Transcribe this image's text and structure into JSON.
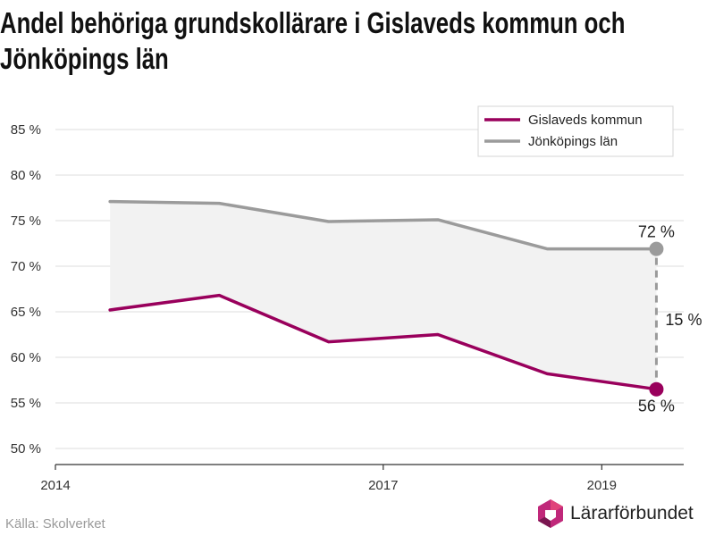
{
  "title_lines": [
    "Andel behöriga grundskollärare i Gislaveds kommun och",
    "Jönköpings län"
  ],
  "source": "Källa: Skolverket",
  "brand": "Lärarförbundet",
  "colors": {
    "gislaved": "#99005c",
    "jonkoping": "#9b9b9b",
    "band": "#f2f2f2",
    "grid": "#dddddd"
  },
  "chart_data": {
    "type": "line",
    "title": "Andel behöriga grundskollärare i Gislaveds kommun och Jönköpings län",
    "x": [
      2014.5,
      2015.5,
      2016.5,
      2017.5,
      2018.5,
      2019.5
    ],
    "series": [
      {
        "name": "Gislaveds kommun",
        "values": [
          65.2,
          66.8,
          61.7,
          62.5,
          58.2,
          56.5
        ]
      },
      {
        "name": "Jönköpings län",
        "values": [
          77.1,
          76.9,
          74.9,
          75.1,
          71.9,
          71.9
        ]
      }
    ],
    "ylim": [
      50,
      85
    ],
    "yticks": [
      50,
      55,
      60,
      65,
      70,
      75,
      80,
      85
    ],
    "ytick_labels": [
      "50 %",
      "55 %",
      "60 %",
      "65 %",
      "70 %",
      "75 %",
      "80 %",
      "85 %"
    ],
    "xticks": [
      2014,
      2017,
      2019
    ],
    "xtick_labels": [
      "2014",
      "2017",
      "2019"
    ],
    "xlim": [
      2014,
      2019.75
    ],
    "grid": true,
    "legend_position": "top-right",
    "annotations": {
      "jonkoping_end_label": "72 %",
      "gislaved_end_label": "56 %",
      "gap_label": "15 %"
    }
  }
}
